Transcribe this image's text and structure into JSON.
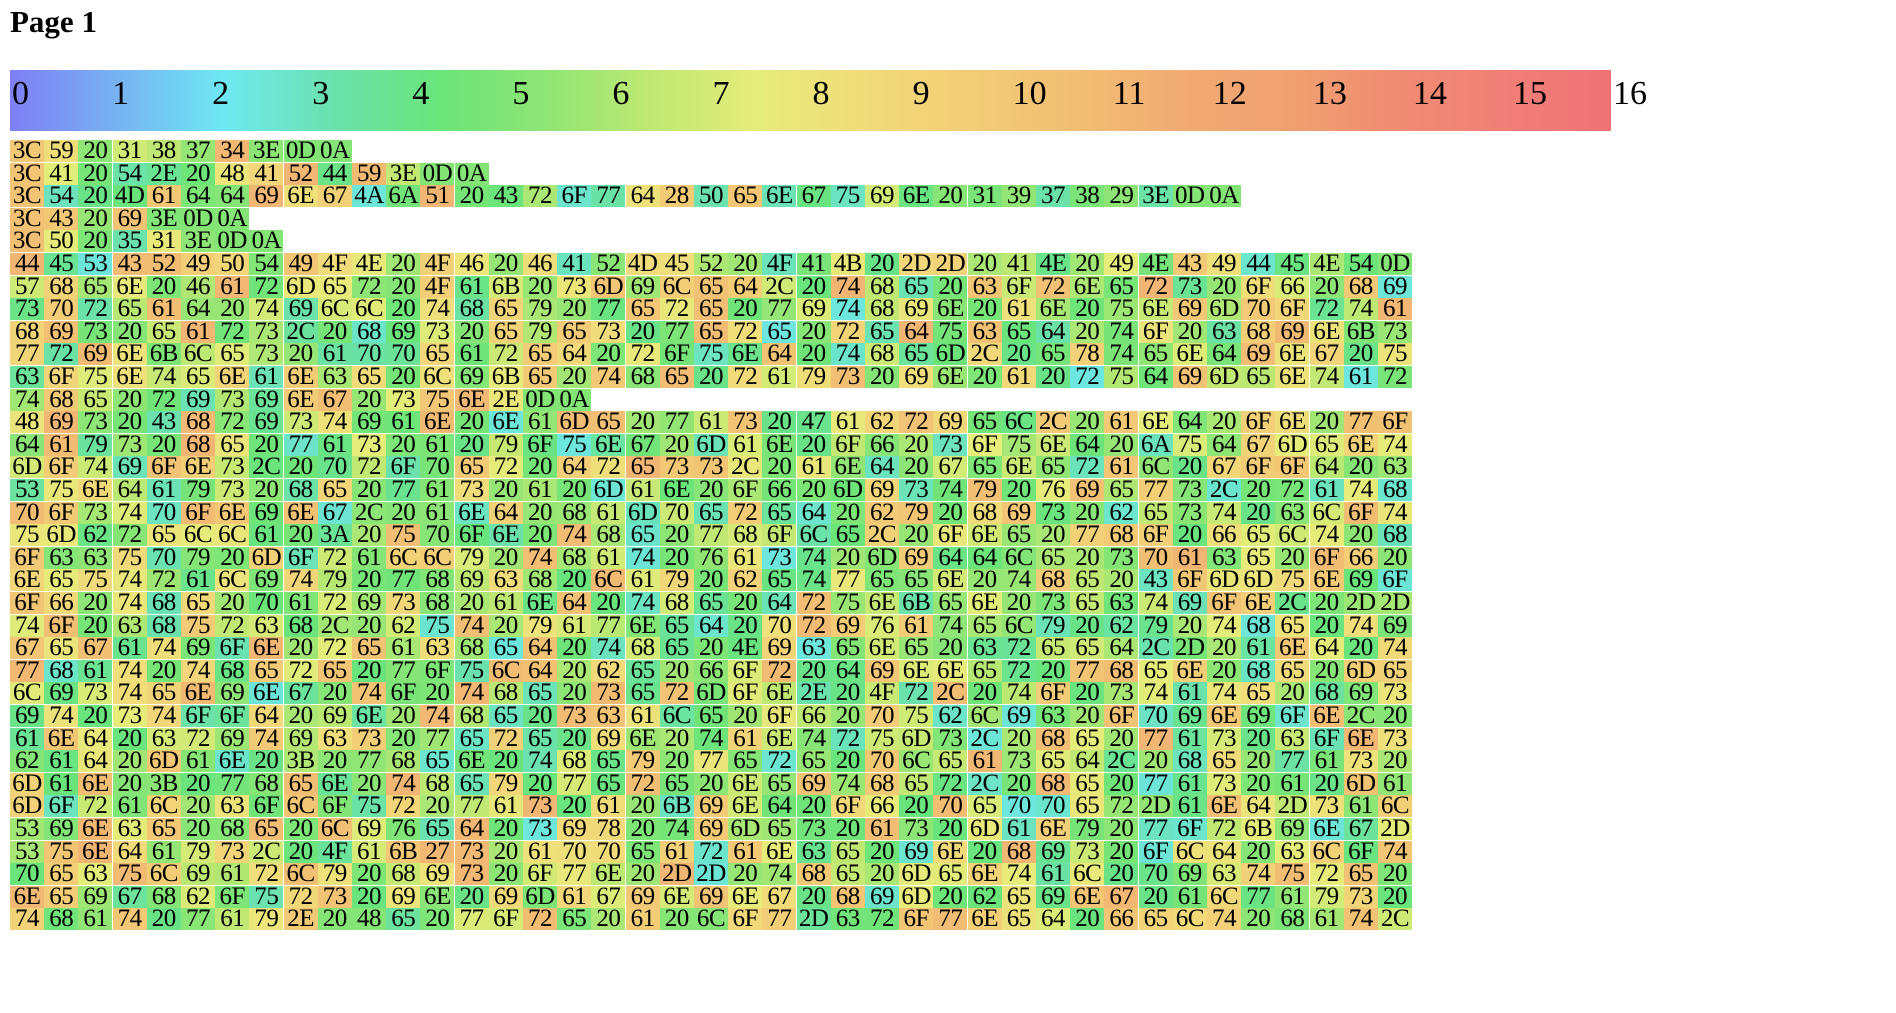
{
  "page": {
    "title": "Page 1"
  },
  "legend": {
    "ticks": [
      "0",
      "1",
      "2",
      "3",
      "4",
      "5",
      "6",
      "7",
      "8",
      "9",
      "10",
      "11",
      "12",
      "13",
      "14",
      "15",
      "16"
    ],
    "colors": [
      "#7f7ff5",
      "#77b2f2",
      "#6ee8f2",
      "#6be2b0",
      "#6ae47a",
      "#8ee575",
      "#bfe873",
      "#e6ec7a",
      "#f0dc7a",
      "#f2cc76",
      "#f1be73",
      "#f1ab73",
      "#f0a070",
      "#f08c73",
      "#f07f77",
      "#f07277"
    ]
  },
  "grid": {
    "rows": [
      "3C 59 20 31 38 37 34 3E 0D 0A",
      "3C 41 20 54 2E 20 48 41 52 44 59 3E 0D 0A",
      "3C 54 20 4D 61 64 64 69 6E 67 4A 6A 51 20 43 72 6F 77 64 28 50 65 6E 67 75 69 6E 20 31 39 37 38 29 3E 0D 0A",
      "3C 43 20 69 3E 0D 0A",
      "3C 50 20 35 31 3E 0D 0A",
      "44 45 53 43 52 49 50 54 49 4F 4E 20 4F 46 20 46 41 52 4D 45 52 20 4F 41 4B 20 2D 2D 20 41 4E 20 49 4E 43 49 44 45 4E 54 0D",
      "57 68 65 6E 20 46 61 72 6D 65 72 20 4F 61 6B 20 73 6D 69 6C 65 64 2C 20 74 68 65 20 63 6F 72 6E 65 72 73 20 6F 66 20 68 69",
      "73 70 72 65 61 64 20 74 69 6C 6C 20 74 68 65 79 20 77 65 72 65 20 77 69 74 68 69 6E 20 61 6E 20 75 6E 69 6D 70 6F 72 74 61",
      "68 69 73 20 65 61 72 73 2C 20 68 69 73 20 65 79 65 73 20 77 65 72 65 20 72 65 64 75 63 65 64 20 74 6F 20 63 68 69 6E 6B 73",
      "77 72 69 6E 6B 6C 65 73 20 61 70 70 65 61 72 65 64 20 72 6F 75 6E 64 20 74 68 65 6D 2C 20 65 78 74 65 6E 64 69 6E 67 20 75",
      "63 6F 75 6E 74 65 6E 61 6E 63 65 20 6C 69 6B 65 20 74 68 65 20 72 61 79 73 20 69 6E 20 61 20 72 75 64 69 6D 65 6E 74 61 72",
      "74 68 65 20 72 69 73 69 6E 67 20 73 75 6E 2E 0D 0A",
      "48 69 73 20 43 68 72 69 73 74 69 61 6E 20 6E 61 6D 65 20 77 61 73 20 47 61 62 72 69 65 6C 2C 20 61 6E 64 20 6F 6E 20 77 6F",
      "64 61 79 73 20 68 65 20 77 61 73 20 61 20 79 6F 75 6E 67 20 6D 61 6E 20 6F 66 20 73 6F 75 6E 64 20 6A 75 64 67 6D 65 6E 74",
      "6D 6F 74 69 6F 6E 73 2C 20 70 72 6F 70 65 72 20 64 72 65 73 73 2C 20 61 6E 64 20 67 65 6E 65 72 61 6C 20 67 6F 6F 64 20 63",
      "53 75 6E 64 61 79 73 20 68 65 20 77 61 73 20 61 20 6D 61 6E 20 6F 66 20 6D 69 73 74 79 20 76 69 65 77 73 2C 20 72 61 74 68",
      "70 6F 73 74 70 6F 6E 69 6E 67 2C 20 61 6E 64 20 68 61 6D 70 65 72 65 64 20 62 79 20 68 69 73 20 62 65 73 74 20 63 6C 6F 74",
      "75 6D 62 72 65 6C 6C 61 20 3A 20 75 70 6F 6E 20 74 68 65 20 77 68 6F 6C 65 2C 20 6F 6E 65 20 77 68 6F 20 66 65 6C 74 20 68",
      "6F 63 63 75 70 79 20 6D 6F 72 61 6C 6C 79 20 74 68 61 74 20 76 61 73 74 20 6D 69 64 64 6C 65 20 73 70 61 63 65 20 6F 66 20",
      "6E 65 75 74 72 61 6C 69 74 79 20 77 68 69 63 68 20 6C 61 79 20 62 65 74 77 65 65 6E 20 74 68 65 20 43 6F 6D 6D 75 6E 69 6F",
      "6F 66 20 74 68 65 20 70 61 72 69 73 68 20 61 6E 64 20 74 68 65 20 64 72 75 6E 6B 65 6E 20 73 65 63 74 69 6F 6E 2C 20 2D 2D",
      "74 6F 20 63 68 75 72 63 68 2C 20 62 75 74 20 79 61 77 6E 65 64 20 70 72 69 76 61 74 65 6C 79 20 62 79 20 74 68 65 20 74 69",
      "67 65 67 61 74 69 6F 6E 20 72 65 61 63 68 65 64 20 74 68 65 20 4E 69 63 65 6E 65 20 63 72 65 65 64 2C 2D 20 61 6E 64 20 74",
      "77 68 61 74 20 74 68 65 72 65 20 77 6F 75 6C 64 20 62 65 20 66 6F 72 20 64 69 6E 6E 65 72 20 77 68 65 6E 20 68 65 20 6D 65",
      "6C 69 73 74 65 6E 69 6E 67 20 74 6F 20 74 68 65 20 73 65 72 6D 6F 6E 2E 20 4F 72 2C 20 74 6F 20 73 74 61 74 65 20 68 69 73",
      "69 74 20 73 74 6F 6F 64 20 69 6E 20 74 68 65 20 73 63 61 6C 65 20 6F 66 20 70 75 62 6C 69 63 20 6F 70 69 6E 69 6F 6E 2C 20",
      "61 6E 64 20 63 72 69 74 69 63 73 20 77 65 72 65 20 69 6E 20 74 61 6E 74 72 75 6D 73 2C 20 68 65 20 77 61 73 20 63 6F 6E 73",
      "62 61 64 20 6D 61 6E 20 3B 20 77 68 65 6E 20 74 68 65 79 20 77 65 72 65 20 70 6C 65 61 73 65 64 2C 20 68 65 20 77 61 73 20",
      "6D 61 6E 20 3B 20 77 68 65 6E 20 74 68 65 79 20 77 65 72 65 20 6E 65 69 74 68 65 72 2C 20 68 65 20 77 61 73 20 61 20 6D 61",
      "6D 6F 72 61 6C 20 63 6F 6C 6F 75 72 20 77 61 73 20 61 20 6B 69 6E 64 20 6F 66 20 70 65 70 70 65 72 2D 61 6E 64 2D 73 61 6C",
      "53 69 6E 63 65 20 68 65 20 6C 69 76 65 64 20 73 69 78 20 74 69 6D 65 73 20 61 73 20 6D 61 6E 79 20 77 6F 72 6B 69 6E 67 2D",
      "53 75 6E 64 61 79 73 2C 20 4F 61 6B 27 73 20 61 70 70 65 61 72 61 6E 63 65 20 69 6E 20 68 69 73 20 6F 6C 64 20 63 6C 6F 74",
      "70 65 63 75 6C 69 61 72 6C 79 20 68 69 73 20 6F 77 6E 20 2D 2D 20 74 68 65 20 6D 65 6E 74 61 6C 20 70 69 63 74 75 72 65 20",
      "6E 65 69 67 68 62 6F 75 72 73 20 69 6E 20 69 6D 61 67 69 6E 69 6E 67 20 68 69 6D 20 62 65 69 6E 67 20 61 6C 77 61 79 73 20",
      "74 68 61 74 20 77 61 79 2E 20 48 65 20 77 6F 72 65 20 61 20 6C 6F 77 2D 63 72 6F 77 6E 65 64 20 66 65 6C 74 20 68 61 74 2C"
    ]
  }
}
